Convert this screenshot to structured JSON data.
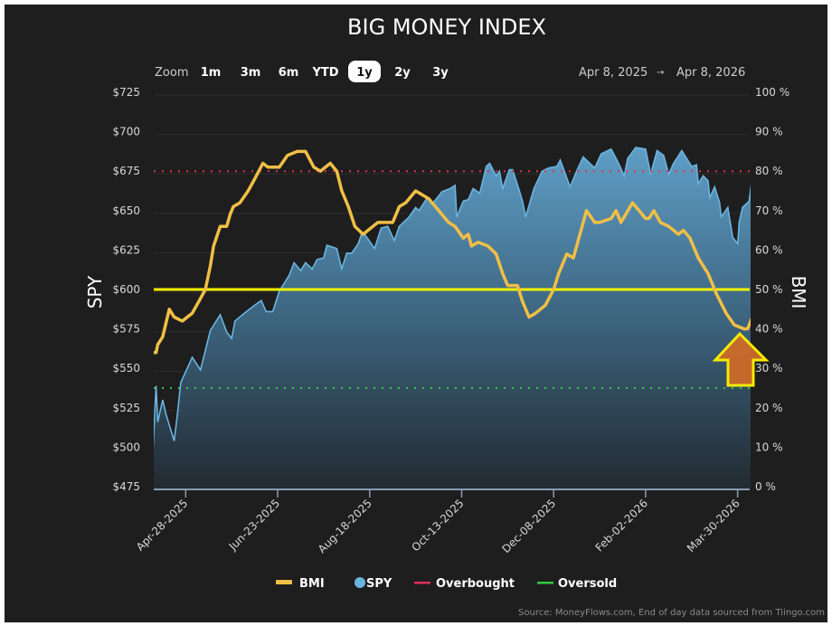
{
  "title": "BIG MONEY INDEX",
  "zoom": {
    "label": "Zoom",
    "buttons": [
      "1m",
      "3m",
      "6m",
      "YTD",
      "1y",
      "2y",
      "3y"
    ],
    "selected": "1y"
  },
  "range": {
    "from": "Apr 8, 2025",
    "arrow": "→",
    "to": "Apr 8, 2026"
  },
  "source": "Source: MoneyFlows.com, End of day data sourced from Tiingo.com",
  "annotation": {
    "icon": "arrow-up-icon",
    "fill": "#cc6a28",
    "stroke": "#f5ea00"
  },
  "chart_data": {
    "type": "line",
    "title": "BIG MONEY INDEX",
    "x_range": [
      "2025-04-08",
      "2026-04-08"
    ],
    "x_ticks": [
      "Apr-28-2025",
      "Jun-23-2025",
      "Aug-18-2025",
      "Oct-13-2025",
      "Dec-08-2025",
      "Feb-02-2026",
      "Mar-30-2026"
    ],
    "x_tick_dates": [
      "2025-04-28",
      "2025-06-23",
      "2025-08-18",
      "2025-10-13",
      "2025-12-08",
      "2026-02-02",
      "2026-03-30"
    ],
    "y_left": {
      "label": "SPY",
      "range": [
        475,
        725
      ],
      "ticks": [
        "$725",
        "$700",
        "$675",
        "$650",
        "$625",
        "$600",
        "$575",
        "$550",
        "$525",
        "$500",
        "$475"
      ]
    },
    "y_right": {
      "label": "BMI",
      "range": [
        0,
        100
      ],
      "ticks": [
        "100 %",
        "90 %",
        "80 %",
        "70 %",
        "60 %",
        "50 %",
        "40 %",
        "30 %",
        "20 %",
        "10 %",
        "0 %"
      ]
    },
    "grid": true,
    "legend_position": "bottom",
    "legend": [
      {
        "name": "BMI",
        "color": "#f0bf45"
      },
      {
        "name": "SPY",
        "color": "#6ab4e0"
      },
      {
        "name": "Overbought",
        "color": "#e0305a"
      },
      {
        "name": "Oversold",
        "color": "#2ecc40"
      }
    ],
    "reference_lines": {
      "overbought": 80,
      "oversold": 25,
      "midline": 50,
      "midline_color": "#f5f000"
    },
    "series": [
      {
        "name": "SPY",
        "axis": "left",
        "points": [
          [
            "2025-04-08",
            496
          ],
          [
            "2025-04-10",
            539
          ],
          [
            "2025-04-11",
            516
          ],
          [
            "2025-04-14",
            530
          ],
          [
            "2025-04-16",
            521
          ],
          [
            "2025-04-21",
            504
          ],
          [
            "2025-04-23",
            521
          ],
          [
            "2025-04-25",
            541
          ],
          [
            "2025-05-02",
            557
          ],
          [
            "2025-05-07",
            549
          ],
          [
            "2025-05-13",
            574
          ],
          [
            "2025-05-19",
            584
          ],
          [
            "2025-05-23",
            573
          ],
          [
            "2025-05-26",
            569
          ],
          [
            "2025-05-28",
            580
          ],
          [
            "2025-06-04",
            586
          ],
          [
            "2025-06-09",
            590
          ],
          [
            "2025-06-13",
            593
          ],
          [
            "2025-06-16",
            586
          ],
          [
            "2025-06-20",
            586
          ],
          [
            "2025-06-24",
            599
          ],
          [
            "2025-06-30",
            609
          ],
          [
            "2025-07-03",
            617
          ],
          [
            "2025-07-07",
            612
          ],
          [
            "2025-07-10",
            617
          ],
          [
            "2025-07-14",
            613
          ],
          [
            "2025-07-17",
            619
          ],
          [
            "2025-07-21",
            620
          ],
          [
            "2025-07-23",
            628
          ],
          [
            "2025-07-29",
            626
          ],
          [
            "2025-08-01",
            613
          ],
          [
            "2025-08-04",
            623
          ],
          [
            "2025-08-07",
            623
          ],
          [
            "2025-08-11",
            629
          ],
          [
            "2025-08-13",
            635
          ],
          [
            "2025-08-15",
            635
          ],
          [
            "2025-08-21",
            626
          ],
          [
            "2025-08-25",
            639
          ],
          [
            "2025-08-29",
            640
          ],
          [
            "2025-09-02",
            631
          ],
          [
            "2025-09-05",
            640
          ],
          [
            "2025-09-11",
            646
          ],
          [
            "2025-09-15",
            652
          ],
          [
            "2025-09-17",
            650
          ],
          [
            "2025-09-22",
            658
          ],
          [
            "2025-09-25",
            654
          ],
          [
            "2025-10-01",
            662
          ],
          [
            "2025-10-06",
            664
          ],
          [
            "2025-10-09",
            666
          ],
          [
            "2025-10-10",
            646
          ],
          [
            "2025-10-14",
            656
          ],
          [
            "2025-10-17",
            657
          ],
          [
            "2025-10-20",
            664
          ],
          [
            "2025-10-24",
            661
          ],
          [
            "2025-10-28",
            678
          ],
          [
            "2025-10-30",
            680
          ],
          [
            "2025-11-03",
            672
          ],
          [
            "2025-11-05",
            675
          ],
          [
            "2025-11-07",
            664
          ],
          [
            "2025-11-11",
            676
          ],
          [
            "2025-11-13",
            676
          ],
          [
            "2025-11-17",
            663
          ],
          [
            "2025-11-19",
            656
          ],
          [
            "2025-11-21",
            646
          ],
          [
            "2025-11-26",
            664
          ],
          [
            "2025-12-01",
            675
          ],
          [
            "2025-12-05",
            677
          ],
          [
            "2025-12-10",
            678
          ],
          [
            "2025-12-12",
            682
          ],
          [
            "2025-12-18",
            665
          ],
          [
            "2025-12-22",
            675
          ],
          [
            "2025-12-26",
            684
          ],
          [
            "2026-01-02",
            677
          ],
          [
            "2026-01-06",
            686
          ],
          [
            "2026-01-12",
            689
          ],
          [
            "2026-01-16",
            681
          ],
          [
            "2026-01-20",
            672
          ],
          [
            "2026-01-22",
            683
          ],
          [
            "2026-01-27",
            690
          ],
          [
            "2026-02-02",
            689
          ],
          [
            "2026-02-05",
            673
          ],
          [
            "2026-02-09",
            688
          ],
          [
            "2026-02-13",
            685
          ],
          [
            "2026-02-16",
            673
          ],
          [
            "2026-02-19",
            680
          ],
          [
            "2026-02-24",
            688
          ],
          [
            "2026-03-02",
            678
          ],
          [
            "2026-03-05",
            679
          ],
          [
            "2026-03-06",
            667
          ],
          [
            "2026-03-09",
            672
          ],
          [
            "2026-03-12",
            669
          ],
          [
            "2026-03-13",
            658
          ],
          [
            "2026-03-16",
            665
          ],
          [
            "2026-03-19",
            655
          ],
          [
            "2026-03-20",
            646
          ],
          [
            "2026-03-24",
            652
          ],
          [
            "2026-03-27",
            633
          ],
          [
            "2026-03-30",
            629
          ],
          [
            "2026-03-31",
            643
          ],
          [
            "2026-04-02",
            652
          ],
          [
            "2026-04-06",
            656
          ],
          [
            "2026-04-08",
            672
          ]
        ]
      },
      {
        "name": "BMI",
        "axis": "right",
        "points": [
          [
            "2025-04-08",
            34
          ],
          [
            "2025-04-10",
            34
          ],
          [
            "2025-04-11",
            36
          ],
          [
            "2025-04-14",
            38
          ],
          [
            "2025-04-18",
            45
          ],
          [
            "2025-04-21",
            43
          ],
          [
            "2025-04-26",
            42
          ],
          [
            "2025-04-29",
            43
          ],
          [
            "2025-05-02",
            44
          ],
          [
            "2025-05-06",
            47
          ],
          [
            "2025-05-10",
            50
          ],
          [
            "2025-05-13",
            56
          ],
          [
            "2025-05-15",
            61
          ],
          [
            "2025-05-19",
            66
          ],
          [
            "2025-05-23",
            66
          ],
          [
            "2025-05-25",
            69
          ],
          [
            "2025-05-27",
            71
          ],
          [
            "2025-05-31",
            72
          ],
          [
            "2025-06-05",
            75
          ],
          [
            "2025-06-09",
            78
          ],
          [
            "2025-06-14",
            82
          ],
          [
            "2025-06-17",
            81
          ],
          [
            "2025-06-24",
            81
          ],
          [
            "2025-06-29",
            84
          ],
          [
            "2025-07-05",
            85
          ],
          [
            "2025-07-10",
            85
          ],
          [
            "2025-07-15",
            81
          ],
          [
            "2025-07-19",
            80
          ],
          [
            "2025-07-25",
            82
          ],
          [
            "2025-07-29",
            80
          ],
          [
            "2025-08-01",
            75
          ],
          [
            "2025-08-05",
            71
          ],
          [
            "2025-08-09",
            66
          ],
          [
            "2025-08-14",
            64
          ],
          [
            "2025-08-20",
            66
          ],
          [
            "2025-08-23",
            67
          ],
          [
            "2025-09-01",
            67
          ],
          [
            "2025-09-05",
            71
          ],
          [
            "2025-09-09",
            72
          ],
          [
            "2025-09-15",
            75
          ],
          [
            "2025-09-23",
            73
          ],
          [
            "2025-09-29",
            70
          ],
          [
            "2025-10-05",
            67
          ],
          [
            "2025-10-09",
            66
          ],
          [
            "2025-10-14",
            63
          ],
          [
            "2025-10-17",
            64
          ],
          [
            "2025-10-19",
            61
          ],
          [
            "2025-10-23",
            62
          ],
          [
            "2025-10-29",
            61
          ],
          [
            "2025-11-03",
            59
          ],
          [
            "2025-11-07",
            54
          ],
          [
            "2025-11-10",
            51
          ],
          [
            "2025-11-16",
            51
          ],
          [
            "2025-11-19",
            47
          ],
          [
            "2025-11-23",
            43
          ],
          [
            "2025-11-27",
            44
          ],
          [
            "2025-12-03",
            46
          ],
          [
            "2025-12-08",
            50
          ],
          [
            "2025-12-11",
            54
          ],
          [
            "2025-12-16",
            59
          ],
          [
            "2025-12-20",
            58
          ],
          [
            "2025-12-28",
            70
          ],
          [
            "2026-01-02",
            67
          ],
          [
            "2026-01-05",
            67
          ],
          [
            "2026-01-12",
            68
          ],
          [
            "2026-01-15",
            70
          ],
          [
            "2026-01-18",
            67
          ],
          [
            "2026-01-25",
            72
          ],
          [
            "2026-02-02",
            68
          ],
          [
            "2026-02-04",
            68
          ],
          [
            "2026-02-07",
            70
          ],
          [
            "2026-02-11",
            67
          ],
          [
            "2026-02-16",
            66
          ],
          [
            "2026-02-22",
            64
          ],
          [
            "2026-02-25",
            65
          ],
          [
            "2026-03-01",
            63
          ],
          [
            "2026-03-06",
            58
          ],
          [
            "2026-03-12",
            54
          ],
          [
            "2026-03-17",
            49
          ],
          [
            "2026-03-23",
            44
          ],
          [
            "2026-03-28",
            41
          ],
          [
            "2026-04-03",
            40
          ],
          [
            "2026-04-05",
            40
          ],
          [
            "2026-04-08",
            43
          ]
        ]
      }
    ]
  }
}
